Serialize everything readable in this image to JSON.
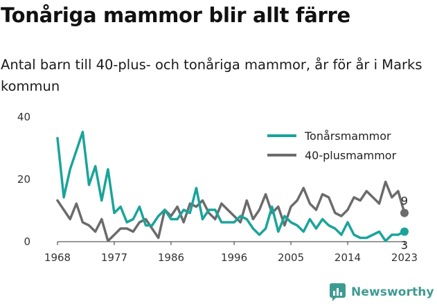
{
  "header": {
    "title": "Tonåriga mammor blir allt färre",
    "subtitle": "Antal barn till 40-plus- och tonåriga mammor, år för år i Marks kommun"
  },
  "brand": {
    "name": "Newsworthy"
  },
  "colors": {
    "teen": "#1aa49a",
    "plus40": "#6b6b6b",
    "axis": "#333333",
    "brand": "#3f9b92"
  },
  "chart_data": {
    "type": "line",
    "title": "Tonåriga mammor blir allt färre",
    "subtitle": "Antal barn till 40-plus- och tonåriga mammor, år för år i Marks kommun",
    "xlabel": "",
    "ylabel": "",
    "x": [
      1968,
      1969,
      1970,
      1971,
      1972,
      1973,
      1974,
      1975,
      1976,
      1977,
      1978,
      1979,
      1980,
      1981,
      1982,
      1983,
      1984,
      1985,
      1986,
      1987,
      1988,
      1989,
      1990,
      1991,
      1992,
      1993,
      1994,
      1995,
      1996,
      1997,
      1998,
      1999,
      2000,
      2001,
      2002,
      2003,
      2004,
      2005,
      2006,
      2007,
      2008,
      2009,
      2010,
      2011,
      2012,
      2013,
      2014,
      2015,
      2016,
      2017,
      2018,
      2019,
      2020,
      2021,
      2022,
      2023
    ],
    "xticks": [
      1968,
      1977,
      1986,
      1996,
      2005,
      2014,
      2023
    ],
    "xlim": [
      1968,
      2023
    ],
    "yticks": [
      0,
      20,
      40
    ],
    "ylim": [
      0,
      40
    ],
    "grid": false,
    "legend": "top-right",
    "series": [
      {
        "name": "Tonårsmammor",
        "color": "#1aa49a",
        "values": [
          33,
          14,
          23,
          29,
          35,
          18,
          24,
          13,
          23,
          9,
          11,
          6,
          7,
          11,
          5,
          5,
          8,
          10,
          7,
          7,
          10,
          9,
          17,
          7,
          10,
          10,
          6,
          6,
          6,
          8,
          7,
          4,
          2,
          4,
          11,
          3,
          8,
          6,
          5,
          3,
          7,
          4,
          7,
          5,
          4,
          2,
          6,
          2,
          1,
          1,
          2,
          3,
          0,
          2,
          2,
          3
        ],
        "end_label": "3"
      },
      {
        "name": "40-plusmammor",
        "color": "#6b6b6b",
        "values": [
          13,
          10,
          7,
          12,
          6,
          5,
          3,
          7,
          0,
          2,
          4,
          4,
          3,
          6,
          7,
          4,
          1,
          10,
          8,
          11,
          6,
          12,
          11,
          13,
          9,
          7,
          12,
          10,
          8,
          6,
          13,
          7,
          10,
          15,
          9,
          11,
          5,
          11,
          13,
          17,
          12,
          10,
          15,
          14,
          9,
          8,
          10,
          14,
          13,
          16,
          14,
          12,
          19,
          14,
          16,
          9
        ],
        "end_label": "9"
      }
    ]
  }
}
